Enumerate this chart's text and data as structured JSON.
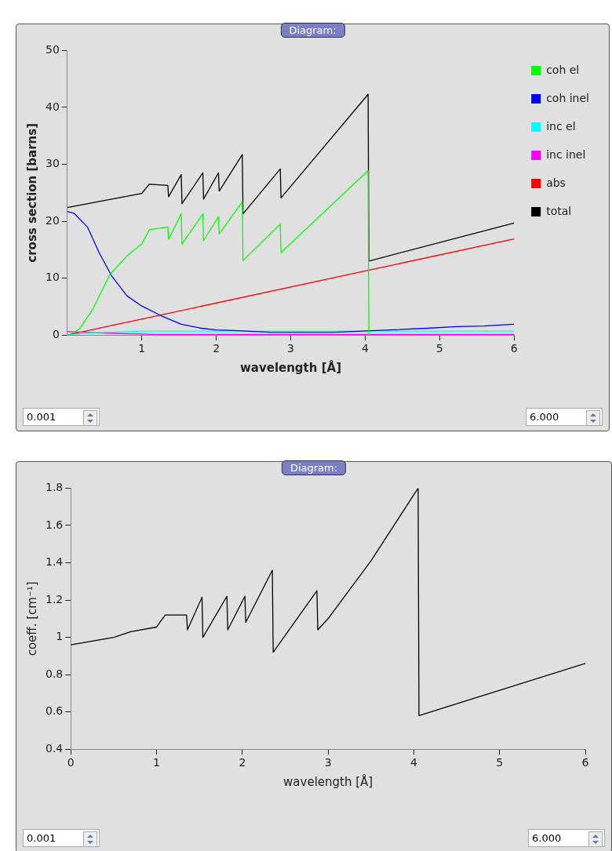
{
  "chart_data": [
    {
      "type": "line",
      "xlabel": "wavelength [Å]",
      "ylabel": "cross section [barns]",
      "xlim": [
        0,
        6
      ],
      "xticks": [
        1,
        2,
        3,
        4,
        5,
        6
      ],
      "ylim": [
        0,
        50
      ],
      "yticks": [
        0,
        10,
        20,
        30,
        40,
        50
      ],
      "grid": false,
      "legend": "top right",
      "marker": "none",
      "line_style": "solid",
      "annotations": [
        "Diagram:",
        "0.001",
        "6.000"
      ],
      "series": [
        {
          "name": "coh el",
          "color": "#00ff00",
          "x": [
            0.02,
            0.16,
            0.34,
            0.57,
            0.8,
            1.0,
            1.1,
            1.35,
            1.36,
            1.53,
            1.54,
            1.82,
            1.83,
            2.03,
            2.04,
            2.35,
            2.36,
            2.86,
            2.87,
            4.04,
            4.05
          ],
          "values": [
            0,
            1,
            4.5,
            10.6,
            13.9,
            16,
            18.5,
            19,
            16.8,
            21.3,
            16,
            21.3,
            16.6,
            20.8,
            17.8,
            23.4,
            13.1,
            19.5,
            14.5,
            28.9,
            0
          ]
        },
        {
          "name": "coh inel",
          "color": "#0000ff",
          "x": [
            0,
            0.09,
            0.27,
            0.43,
            0.6,
            0.8,
            1.0,
            1.26,
            1.53,
            1.8,
            2.0,
            2.24,
            2.72,
            3.6,
            4.33,
            4.83,
            5.24,
            5.6,
            6
          ],
          "values": [
            21.7,
            21.4,
            19,
            14.4,
            10.3,
            6.9,
            5.1,
            3.4,
            1.9,
            1.2,
            0.9,
            0.8,
            0.5,
            0.5,
            0.9,
            1.2,
            1.5,
            1.6,
            1.9
          ]
        },
        {
          "name": "inc el",
          "color": "#00ffff",
          "x": [
            0,
            0.34,
            1.0,
            6
          ],
          "values": [
            0,
            0.4,
            0.7,
            0.7
          ]
        },
        {
          "name": "inc inel",
          "color": "#ff00ff",
          "x": [
            0,
            0.62,
            1.2,
            6
          ],
          "values": [
            0.6,
            0.3,
            0.1,
            0.1
          ]
        },
        {
          "name": "abs",
          "color": "#ff0000",
          "x": [
            0,
            6
          ],
          "values": [
            0,
            16.9
          ]
        },
        {
          "name": "total",
          "color": "#000000",
          "x": [
            0,
            1.0,
            1.1,
            1.35,
            1.36,
            1.53,
            1.54,
            1.82,
            1.83,
            2.03,
            2.04,
            2.35,
            2.36,
            2.86,
            2.87,
            4.04,
            4.05,
            6
          ],
          "values": [
            22.4,
            24.9,
            26.5,
            26.3,
            24.3,
            28.2,
            23.1,
            28.5,
            23.9,
            28.5,
            25.3,
            31.7,
            21.3,
            29.2,
            24.1,
            42.3,
            13.0,
            19.7
          ]
        }
      ]
    },
    {
      "type": "line",
      "xlabel": "wavelength [Å]",
      "ylabel": "coeff. [cm⁻¹]",
      "xlim": [
        0,
        6
      ],
      "xticks": [
        0,
        1,
        2,
        3,
        4,
        5,
        6
      ],
      "ylim": [
        0.4,
        1.8
      ],
      "yticks": [
        0.4,
        0.6,
        0.8,
        1,
        1.2,
        1.4,
        1.6,
        1.8
      ],
      "grid": false,
      "legend": false,
      "marker": "none",
      "line_style": "solid",
      "annotations": [
        "Diagram:",
        "0.001",
        "6.000"
      ],
      "series": [
        {
          "color": "#000000",
          "x": [
            0,
            0.5,
            0.7,
            1.0,
            1.1,
            1.35,
            1.36,
            1.53,
            1.54,
            1.82,
            1.83,
            2.03,
            2.04,
            2.35,
            2.36,
            2.87,
            2.88,
            3.0,
            3.5,
            4.05,
            4.06,
            6
          ],
          "values": [
            0.96,
            1.0,
            1.03,
            1.055,
            1.12,
            1.12,
            1.04,
            1.215,
            1.0,
            1.22,
            1.04,
            1.22,
            1.08,
            1.36,
            0.92,
            1.25,
            1.04,
            1.1,
            1.41,
            1.8,
            0.58,
            0.86
          ]
        }
      ]
    }
  ]
}
